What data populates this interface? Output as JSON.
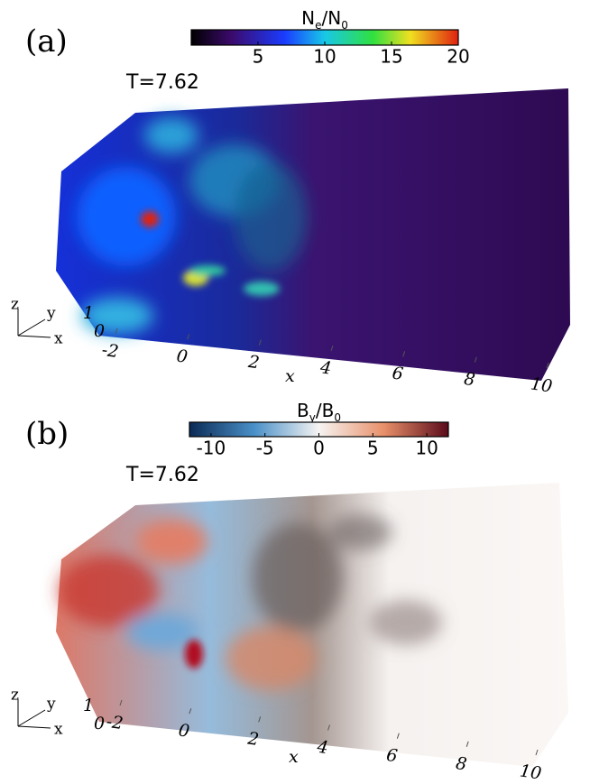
{
  "panels": [
    {
      "label": "(a)",
      "time": "T=7.62",
      "colorbar": {
        "title": [
          "N",
          "e",
          "/N",
          "0"
        ],
        "lim": [
          0,
          20
        ],
        "ticks": [
          5,
          10,
          15,
          20
        ]
      },
      "x_label": "x",
      "x_ticks": [
        -2,
        0,
        2,
        4,
        6,
        8,
        10
      ],
      "y_ticks": [
        1,
        0
      ],
      "triad": [
        "z",
        "y",
        "x"
      ]
    },
    {
      "label": "(b)",
      "time": "T=7.62",
      "colorbar": {
        "title": [
          "B",
          "y",
          "/B",
          "0"
        ],
        "lim": [
          -12,
          12
        ],
        "ticks": [
          -10,
          -5,
          0,
          5,
          10
        ]
      },
      "x_label": "x",
      "x_ticks": [
        -2,
        0,
        2,
        4,
        6,
        8,
        10
      ],
      "y_ticks": [
        1,
        0
      ],
      "triad": [
        "z",
        "y",
        "x"
      ]
    }
  ]
}
